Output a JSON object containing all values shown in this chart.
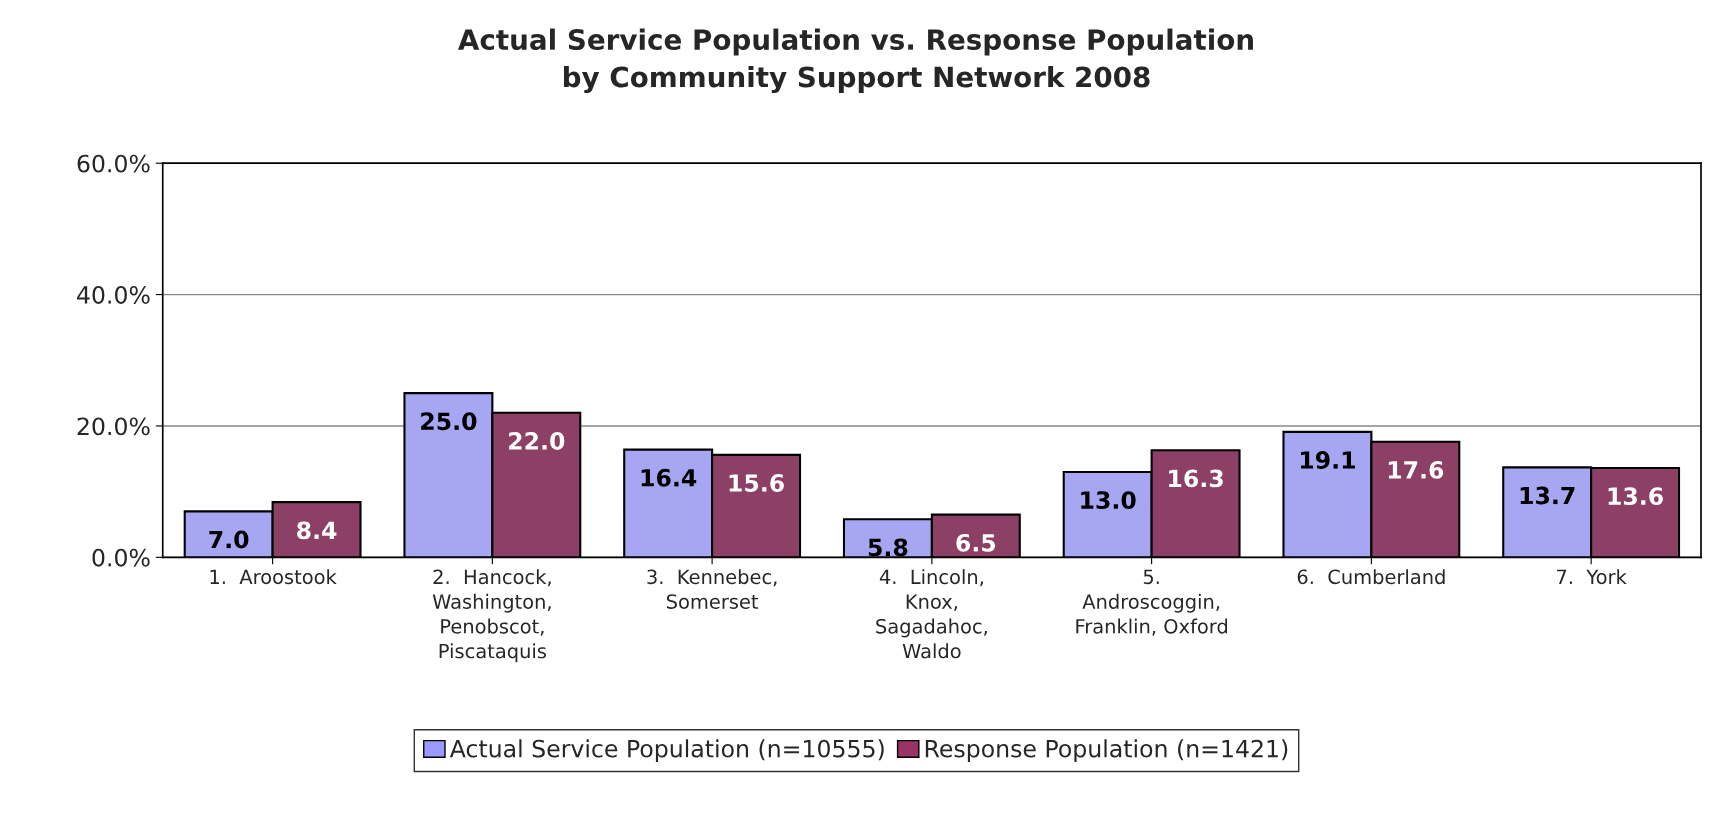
{
  "chart_data": {
    "type": "bar",
    "title": "Actual Service Population vs. Response Population\nby Community Support Network 2008",
    "categories": [
      "1.  Aroostook",
      "2.  Hancock,\nWashington,\nPenobscot,\nPiscataquis",
      "3.  Kennebec,\nSomerset",
      "4.  Lincoln,\nKnox,\nSagadahoc,\nWaldo",
      "5.\nAndroscoggin,\nFranklin, Oxford",
      "6.  Cumberland",
      "7.  York"
    ],
    "series": [
      {
        "name": "Actual Service Population (n=10555)",
        "color": "#9999ff",
        "values": [
          7.0,
          25.0,
          16.4,
          5.8,
          13.0,
          19.1,
          13.7
        ],
        "value_labels": [
          "7.0",
          "25.0",
          "16.4",
          "5.8",
          "13.0",
          "19.1",
          "13.7"
        ]
      },
      {
        "name": "Response Population (n=1421)",
        "color": "#993366",
        "values": [
          8.4,
          22.0,
          15.6,
          6.5,
          16.3,
          17.6,
          13.6
        ],
        "value_labels": [
          "8.4",
          "22.0",
          "15.6",
          "6.5",
          "16.3",
          "17.6",
          "13.6"
        ]
      }
    ],
    "ylim": [
      0,
      60
    ],
    "yticks": [
      {
        "value": 0,
        "label": "0.0%"
      },
      {
        "value": 20,
        "label": "20.0%"
      },
      {
        "value": 40,
        "label": "40.0%"
      },
      {
        "value": 60,
        "label": "60.0%"
      }
    ],
    "grid": "y",
    "legend": "bottom"
  }
}
